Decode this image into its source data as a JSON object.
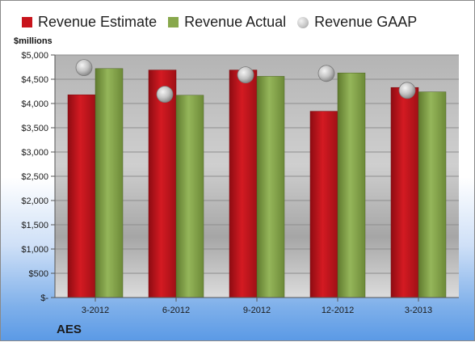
{
  "legend": {
    "estimate": "Revenue Estimate",
    "actual": "Revenue Actual",
    "gaap": "Revenue GAAP"
  },
  "units_label": "$millions",
  "company_label": "AES",
  "colors": {
    "estimate": "#c8141c",
    "actual": "#88a84c",
    "gaap": "#c4c4c4"
  },
  "chart_data": {
    "type": "bar",
    "categories": [
      "3-2012",
      "6-2012",
      "9-2012",
      "12-2012",
      "3-2013"
    ],
    "series": [
      {
        "name": "Revenue Estimate",
        "values": [
          4180,
          4690,
          4690,
          3840,
          4330
        ]
      },
      {
        "name": "Revenue Actual",
        "values": [
          4720,
          4170,
          4560,
          4630,
          4240
        ]
      },
      {
        "name": "Revenue GAAP",
        "values": [
          4740,
          4190,
          4590,
          4620,
          4270
        ]
      }
    ],
    "ylabel": "$millions",
    "ylim": [
      0,
      5000
    ],
    "yticks": [
      0,
      500,
      1000,
      1500,
      2000,
      2500,
      3000,
      3500,
      4000,
      4500,
      5000
    ],
    "ytick_labels": [
      "$-",
      "$500",
      "$1,000",
      "$1,500",
      "$2,000",
      "$2,500",
      "$3,000",
      "$3,500",
      "$4,000",
      "$4,500",
      "$5,000"
    ],
    "grid": true,
    "legend_position": "top"
  }
}
